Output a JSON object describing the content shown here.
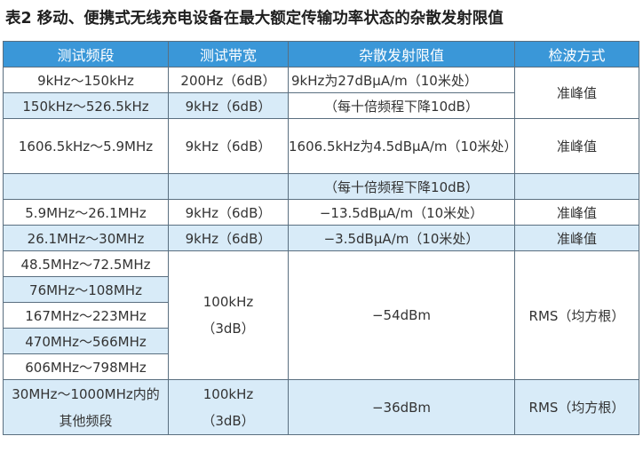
{
  "title": "表2  移动、便携式无线充电设备在最大额定传输功率状态的杂散发射限值",
  "table": {
    "headers": [
      "测试频段",
      "测试带宽",
      "杂散发射限值",
      "检波方式"
    ],
    "rows": {
      "r1": {
        "band": "9kHz～150kHz",
        "bw": "200Hz（6dB）",
        "limit": "9kHz为27dBμA/m（10米处）",
        "det": "准峰值"
      },
      "r2": {
        "band": "150kHz～526.5kHz",
        "bw": "9kHz（6dB）",
        "limit": "（每十倍频程下降10dB）"
      },
      "r3": {
        "band": "1606.5kHz～5.9MHz",
        "bw": "9kHz（6dB）",
        "limit": "1606.5kHz为4.5dBμA/m（10米处）",
        "det": "准峰值"
      },
      "r4": {
        "limit": "（每十倍频程下降10dB）"
      },
      "r5": {
        "band": "5.9MHz～26.1MHz",
        "bw": "9kHz（6dB）",
        "limit": "−13.5dBμA/m（10米处）",
        "det": "准峰值"
      },
      "r6": {
        "band": "26.1MHz～30MHz",
        "bw": "9kHz（6dB）",
        "limit": "−3.5dBμA/m（10米处）",
        "det": "准峰值"
      },
      "g1": {
        "bands": [
          "48.5MHz～72.5MHz",
          "76MHz～108MHz",
          "167MHz～223MHz",
          "470MHz～566MHz",
          "606MHz～798MHz"
        ],
        "bw_line1": "100kHz",
        "bw_line2": "（3dB）",
        "limit": "−54dBm",
        "det": "RMS（均方根）"
      },
      "g2": {
        "band_line1": "30MHz～1000MHz内的",
        "band_line2": "其他频段",
        "bw_line1": "100kHz",
        "bw_line2": "（3dB）",
        "limit": "−36dBm",
        "det": "RMS（均方根）"
      }
    }
  },
  "colors": {
    "header_bg": "#3a97d8",
    "row_tint": "#d8ebf8",
    "border": "#5a6f80"
  }
}
